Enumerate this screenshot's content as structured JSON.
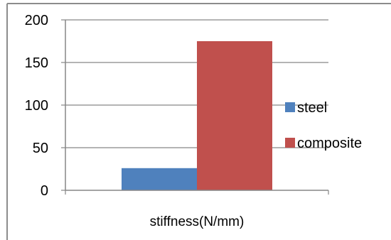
{
  "chart_data": {
    "type": "bar",
    "categories": [
      "stiffness(N/mm)"
    ],
    "series": [
      {
        "name": "steel",
        "values": [
          26
        ],
        "color": "#4f81bd"
      },
      {
        "name": "composite",
        "values": [
          175
        ],
        "color": "#c0504d"
      }
    ],
    "ylim": [
      0,
      200
    ],
    "yticks": [
      0,
      50,
      100,
      150,
      200
    ],
    "grid": true,
    "legend": "right",
    "title": "",
    "xlabel": "",
    "ylabel": ""
  }
}
